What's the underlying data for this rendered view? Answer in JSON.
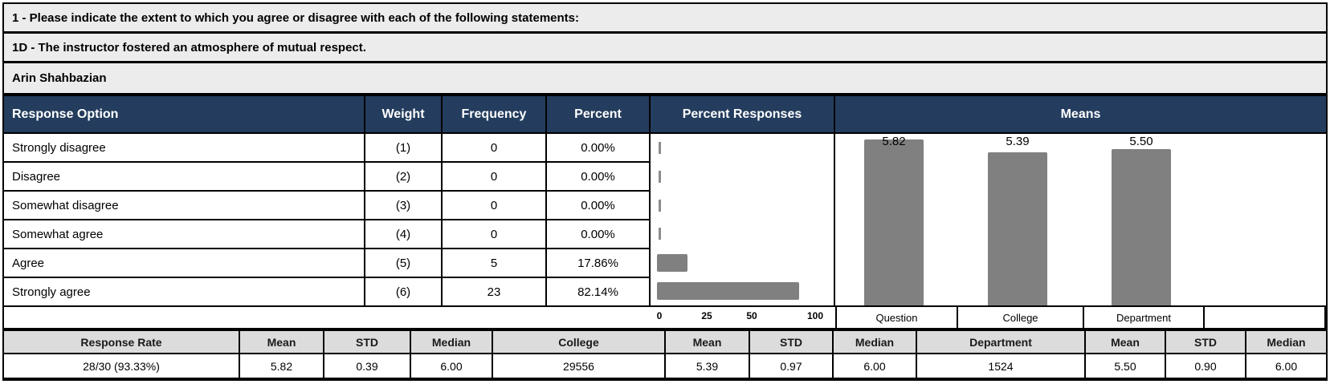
{
  "report": {
    "question_group": "1 - Please indicate the extent to which you agree or disagree with each of the following statements:",
    "question": "1D - The instructor fostered an atmosphere of mutual respect.",
    "instructor": "Arin Shahbazian"
  },
  "colors": {
    "header_bg": "#243D5E",
    "header_text": "#FFFFFF",
    "bar_gray": "#808080",
    "top_block_bg": "#ECECEC",
    "stats_header_bg": "#DCDCDC",
    "border": "#000000"
  },
  "response_table": {
    "headers": {
      "response_option": "Response Option",
      "weight": "Weight",
      "frequency": "Frequency",
      "percent": "Percent",
      "percent_responses": "Percent Responses",
      "means": "Means"
    },
    "rows": [
      {
        "option": "Strongly disagree",
        "weight": "(1)",
        "frequency": "0",
        "percent": "0.00%"
      },
      {
        "option": "Disagree",
        "weight": "(2)",
        "frequency": "0",
        "percent": "0.00%"
      },
      {
        "option": "Somewhat disagree",
        "weight": "(3)",
        "frequency": "0",
        "percent": "0.00%"
      },
      {
        "option": "Somewhat agree",
        "weight": "(4)",
        "frequency": "0",
        "percent": "0.00%"
      },
      {
        "option": "Agree",
        "weight": "(5)",
        "frequency": "5",
        "percent": "17.86%"
      },
      {
        "option": "Strongly agree",
        "weight": "(6)",
        "frequency": "23",
        "percent": "82.14%"
      }
    ]
  },
  "chart_data": [
    {
      "type": "bar",
      "orientation": "horizontal",
      "title": "Percent Responses",
      "categories": [
        "Strongly disagree",
        "Disagree",
        "Somewhat disagree",
        "Somewhat agree",
        "Agree",
        "Strongly agree"
      ],
      "values": [
        0,
        0,
        0,
        0,
        17.86,
        82.14
      ],
      "xticks": [
        "0",
        "25",
        "50",
        "100"
      ],
      "xlim": [
        0,
        100
      ],
      "bar_color": "#808080",
      "grid": false,
      "legend": false
    },
    {
      "type": "bar",
      "orientation": "vertical",
      "title": "Means",
      "categories": [
        "Question",
        "College",
        "Department"
      ],
      "values": [
        5.82,
        5.39,
        5.5
      ],
      "value_labels": [
        "5.82",
        "5.39",
        "5.50"
      ],
      "ylim": [
        0,
        6
      ],
      "bar_color": "#808080",
      "grid": false,
      "legend": false
    }
  ],
  "stats": {
    "headers": [
      "Response Rate",
      "Mean",
      "STD",
      "Median",
      "College",
      "Mean",
      "STD",
      "Median",
      "Department",
      "Mean",
      "STD",
      "Median"
    ],
    "values": [
      "28/30 (93.33%)",
      "5.82",
      "0.39",
      "6.00",
      "29556",
      "5.39",
      "0.97",
      "6.00",
      "1524",
      "5.50",
      "0.90",
      "6.00"
    ]
  }
}
